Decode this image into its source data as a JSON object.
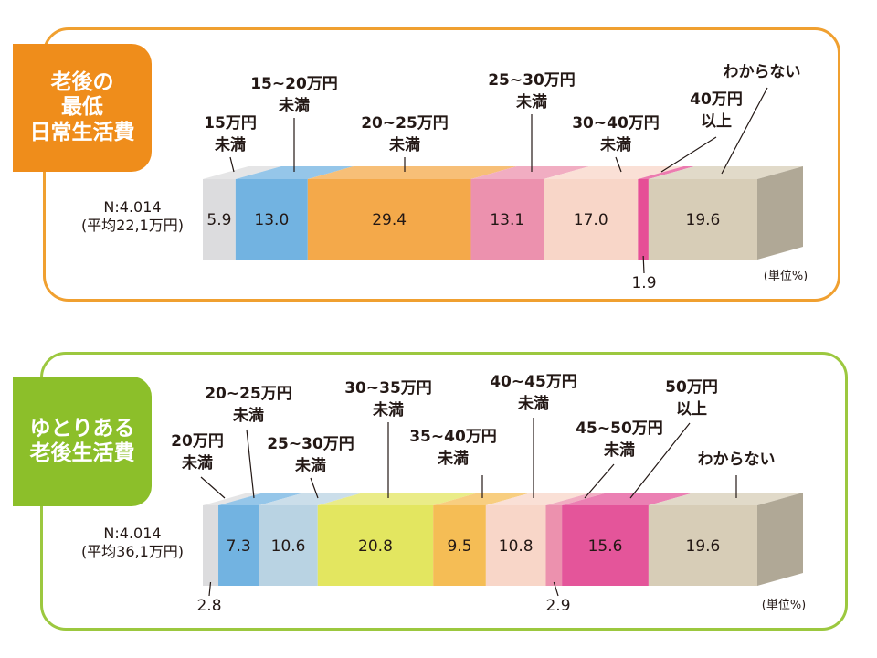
{
  "charts": [
    {
      "tab_lines": [
        "老後の",
        "最低",
        "日常生活費"
      ],
      "tab_color": "#ef8d1b",
      "border_color": "#f0a030",
      "n_lines": [
        "N:4.014",
        "(平均22,1万円)"
      ],
      "unit": "(単位%)"
    },
    {
      "tab_lines": [
        "ゆとりある",
        "老後生活費"
      ],
      "tab_color": "#8cbf2a",
      "border_color": "#9cc83f",
      "n_lines": [
        "N:4.014",
        "(平均36,1万円)"
      ],
      "unit": "(単位%)"
    }
  ],
  "chart_data": [
    {
      "type": "bar",
      "orientation": "horizontal-stacked",
      "categories": [
        "15万円未満",
        "15~20万円未満",
        "20~25万円未満",
        "25~30万円未満",
        "30~40万円未満",
        "40万円以上",
        "わからない"
      ],
      "values": [
        5.9,
        13.0,
        29.4,
        13.1,
        17.0,
        1.9,
        19.6
      ],
      "value_labels": [
        "5.9",
        "13.0",
        "29.4",
        "13.1",
        "17.0",
        "1.9",
        "19.6"
      ],
      "colors": [
        "#dcdcde",
        "#72b3e1",
        "#f4a94a",
        "#ec91ae",
        "#f8d6c8",
        "#e64f96",
        "#d7cdb7"
      ],
      "category_labels": [
        [
          "15万円",
          "未満"
        ],
        [
          "15~20万円",
          "未満"
        ],
        [
          "20~25万円",
          "未満"
        ],
        [
          "25~30万円",
          "未満"
        ],
        [
          "30~40万円",
          "未満"
        ],
        [
          "40万円",
          "以上"
        ],
        [
          "わからない"
        ]
      ],
      "legend": "callouts-above"
    },
    {
      "type": "bar",
      "orientation": "horizontal-stacked",
      "categories": [
        "20万円未満",
        "20~25万円未満",
        "25~30万円未満",
        "30~35万円未満",
        "35~40万円未満",
        "40~45万円未満",
        "45~50万円未満",
        "50万円以上",
        "わからない"
      ],
      "values": [
        2.8,
        7.3,
        10.6,
        20.8,
        9.5,
        10.8,
        2.9,
        15.6,
        19.6
      ],
      "value_labels": [
        "2.8",
        "7.3",
        "10.6",
        "20.8",
        "9.5",
        "10.8",
        "2.9",
        "15.6",
        "19.6"
      ],
      "colors": [
        "#dcdcde",
        "#72b3e1",
        "#b9d3e3",
        "#e3e660",
        "#f5bd55",
        "#f8d6c8",
        "#ec91ae",
        "#e4559a",
        "#d7cdb7"
      ],
      "category_labels": [
        [
          "20万円",
          "未満"
        ],
        [
          "20~25万円",
          "未満"
        ],
        [
          "25~30万円",
          "未満"
        ],
        [
          "30~35万円",
          "未満"
        ],
        [
          "35~40万円",
          "未満"
        ],
        [
          "40~45万円",
          "未満"
        ],
        [
          "45~50万円",
          "未満"
        ],
        [
          "50万円",
          "以上"
        ],
        [
          "わからない"
        ]
      ],
      "legend": "callouts-above"
    }
  ]
}
